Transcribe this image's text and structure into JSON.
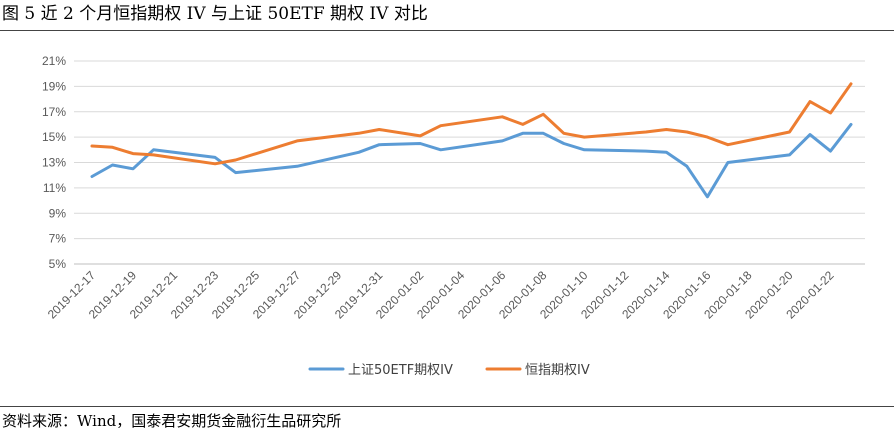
{
  "figure": {
    "title": "图 5  近 2 个月恒指期权 IV 与上证 50ETF 期权 IV 对比",
    "source": "资料来源：Wind，国泰君安期货金融衍生品研究所"
  },
  "chart_data": {
    "type": "line",
    "title": "",
    "xlabel": "",
    "ylabel": "",
    "ylim": [
      0.05,
      0.21
    ],
    "yticks": [
      0.05,
      0.07,
      0.09,
      0.11,
      0.13,
      0.15,
      0.17,
      0.19,
      0.21
    ],
    "ytick_labels": [
      "5%",
      "7%",
      "9%",
      "11%",
      "13%",
      "15%",
      "17%",
      "19%",
      "21%"
    ],
    "x": [
      "2019-12-17",
      "2019-12-18",
      "2019-12-19",
      "2019-12-20",
      "2019-12-21",
      "2019-12-22",
      "2019-12-23",
      "2019-12-24",
      "2019-12-25",
      "2019-12-26",
      "2019-12-27",
      "2019-12-28",
      "2019-12-29",
      "2019-12-30",
      "2019-12-31",
      "2020-01-01",
      "2020-01-02",
      "2020-01-03",
      "2020-01-04",
      "2020-01-05",
      "2020-01-06",
      "2020-01-07",
      "2020-01-08",
      "2020-01-09",
      "2020-01-10",
      "2020-01-11",
      "2020-01-12",
      "2020-01-13",
      "2020-01-14",
      "2020-01-15",
      "2020-01-16",
      "2020-01-17",
      "2020-01-18",
      "2020-01-19",
      "2020-01-20",
      "2020-01-21",
      "2020-01-22",
      "2020-01-23"
    ],
    "xtick_labels": [
      "2019-12-17",
      "2019-12-19",
      "2019-12-21",
      "2019-12-23",
      "2019-12-25",
      "2019-12-27",
      "2019-12-29",
      "2019-12-31",
      "2020-01-02",
      "2020-01-04",
      "2020-01-06",
      "2020-01-08",
      "2020-01-10",
      "2020-01-12",
      "2020-01-14",
      "2020-01-16",
      "2020-01-18",
      "2020-01-20",
      "2020-01-22"
    ],
    "grid": {
      "horizontal": true,
      "vertical": false
    },
    "legend": "bottom",
    "series": [
      {
        "name": "上证50ETF期权IV",
        "color": "#5B9BD5",
        "points": [
          [
            "2019-12-17",
            0.119
          ],
          [
            "2019-12-18",
            0.128
          ],
          [
            "2019-12-19",
            0.125
          ],
          [
            "2019-12-20",
            0.14
          ],
          [
            "2019-12-23",
            0.134
          ],
          [
            "2019-12-24",
            0.122
          ],
          [
            "2019-12-27",
            0.127
          ],
          [
            "2019-12-30",
            0.138
          ],
          [
            "2019-12-31",
            0.144
          ],
          [
            "2020-01-02",
            0.145
          ],
          [
            "2020-01-03",
            0.14
          ],
          [
            "2020-01-06",
            0.147
          ],
          [
            "2020-01-07",
            0.153
          ],
          [
            "2020-01-08",
            0.153
          ],
          [
            "2020-01-09",
            0.145
          ],
          [
            "2020-01-10",
            0.14
          ],
          [
            "2020-01-13",
            0.139
          ],
          [
            "2020-01-14",
            0.138
          ],
          [
            "2020-01-15",
            0.127
          ],
          [
            "2020-01-16",
            0.103
          ],
          [
            "2020-01-17",
            0.13
          ],
          [
            "2020-01-20",
            0.136
          ],
          [
            "2020-01-21",
            0.152
          ],
          [
            "2020-01-22",
            0.139
          ],
          [
            "2020-01-23",
            0.16
          ]
        ]
      },
      {
        "name": "恒指期权IV",
        "color": "#ED7D31",
        "points": [
          [
            "2019-12-17",
            0.143
          ],
          [
            "2019-12-18",
            0.142
          ],
          [
            "2019-12-19",
            0.137
          ],
          [
            "2019-12-20",
            0.136
          ],
          [
            "2019-12-23",
            0.129
          ],
          [
            "2019-12-24",
            0.132
          ],
          [
            "2019-12-27",
            0.147
          ],
          [
            "2019-12-30",
            0.153
          ],
          [
            "2019-12-31",
            0.156
          ],
          [
            "2020-01-02",
            0.151
          ],
          [
            "2020-01-03",
            0.159
          ],
          [
            "2020-01-06",
            0.166
          ],
          [
            "2020-01-07",
            0.16
          ],
          [
            "2020-01-08",
            0.168
          ],
          [
            "2020-01-09",
            0.153
          ],
          [
            "2020-01-10",
            0.15
          ],
          [
            "2020-01-13",
            0.154
          ],
          [
            "2020-01-14",
            0.156
          ],
          [
            "2020-01-15",
            0.154
          ],
          [
            "2020-01-16",
            0.15
          ],
          [
            "2020-01-17",
            0.144
          ],
          [
            "2020-01-20",
            0.154
          ],
          [
            "2020-01-21",
            0.178
          ],
          [
            "2020-01-22",
            0.169
          ],
          [
            "2020-01-23",
            0.192
          ]
        ]
      }
    ]
  }
}
